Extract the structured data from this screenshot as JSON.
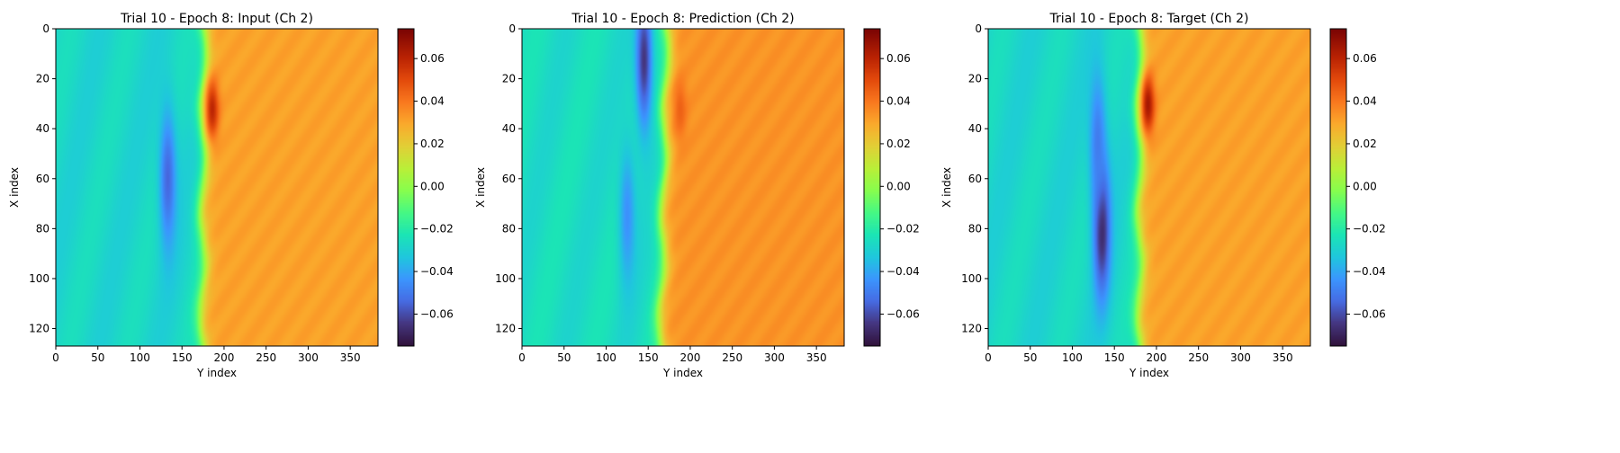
{
  "chart_data": [
    {
      "type": "heatmap",
      "title": "Trial 10 - Epoch 8: Input (Ch 2)",
      "xlabel": "Y index",
      "ylabel": "X index",
      "xlim": [
        0,
        383
      ],
      "ylim": [
        127,
        0
      ],
      "xticks": [
        0,
        50,
        100,
        150,
        200,
        250,
        300,
        350
      ],
      "yticks": [
        0,
        20,
        40,
        60,
        80,
        100,
        120
      ],
      "colorbar": {
        "range": [
          -0.075,
          0.074
        ],
        "ticks": [
          "0.06",
          "0.04",
          "0.02",
          "0.00",
          "−0.02",
          "−0.04",
          "−0.06"
        ],
        "tick_values": [
          0.06,
          0.04,
          0.02,
          0.0,
          -0.02,
          -0.04,
          -0.06
        ],
        "colormap": "turbo"
      },
      "field": {
        "background_left": -0.028,
        "background_right": 0.031,
        "front_y_at_row0": 176,
        "front_y_at_row127": 174,
        "features": [
          {
            "kind": "low",
            "center_y": 133,
            "center_x": 60,
            "value": -0.055
          },
          {
            "kind": "high",
            "center_y": 186,
            "center_x": 32,
            "value": 0.06
          }
        ]
      }
    },
    {
      "type": "heatmap",
      "title": "Trial 10 - Epoch 8: Prediction (Ch 2)",
      "xlabel": "Y index",
      "ylabel": "X index",
      "xlim": [
        0,
        383
      ],
      "ylim": [
        127,
        0
      ],
      "xticks": [
        0,
        50,
        100,
        150,
        200,
        250,
        300,
        350
      ],
      "yticks": [
        0,
        20,
        40,
        60,
        80,
        100,
        120
      ],
      "colorbar": {
        "range": [
          -0.075,
          0.074
        ],
        "ticks": [
          "0.06",
          "0.04",
          "0.02",
          "0.00",
          "−0.02",
          "−0.04",
          "−0.06"
        ],
        "tick_values": [
          0.06,
          0.04,
          0.02,
          0.0,
          -0.02,
          -0.04,
          -0.06
        ],
        "colormap": "turbo"
      },
      "field": {
        "background_left": -0.026,
        "background_right": 0.034,
        "front_y_at_row0": 172,
        "front_y_at_row127": 165,
        "features": [
          {
            "kind": "low",
            "center_y": 145,
            "center_x": 12,
            "value": -0.065
          },
          {
            "kind": "low",
            "center_y": 125,
            "center_x": 75,
            "value": -0.045
          },
          {
            "kind": "high",
            "center_y": 188,
            "center_x": 32,
            "value": 0.045
          }
        ]
      }
    },
    {
      "type": "heatmap",
      "title": "Trial 10 - Epoch 8: Target (Ch 2)",
      "xlabel": "Y index",
      "ylabel": "X index",
      "xlim": [
        0,
        383
      ],
      "ylim": [
        127,
        0
      ],
      "xticks": [
        0,
        50,
        100,
        150,
        200,
        250,
        300,
        350
      ],
      "yticks": [
        0,
        20,
        40,
        60,
        80,
        100,
        120
      ],
      "colorbar": {
        "range": [
          -0.075,
          0.074
        ],
        "ticks": [
          "0.06",
          "0.04",
          "0.02",
          "0.00",
          "−0.02",
          "−0.04",
          "−0.06"
        ],
        "tick_values": [
          0.06,
          0.04,
          0.02,
          0.0,
          -0.02,
          -0.04,
          -0.06
        ],
        "colormap": "turbo"
      },
      "field": {
        "background_left": -0.028,
        "background_right": 0.031,
        "front_y_at_row0": 180,
        "front_y_at_row127": 180,
        "features": [
          {
            "kind": "low",
            "center_y": 135,
            "center_x": 80,
            "value": -0.07
          },
          {
            "kind": "low",
            "center_y": 130,
            "center_x": 45,
            "value": -0.05
          },
          {
            "kind": "high",
            "center_y": 190,
            "center_x": 30,
            "value": 0.065
          }
        ]
      }
    }
  ]
}
